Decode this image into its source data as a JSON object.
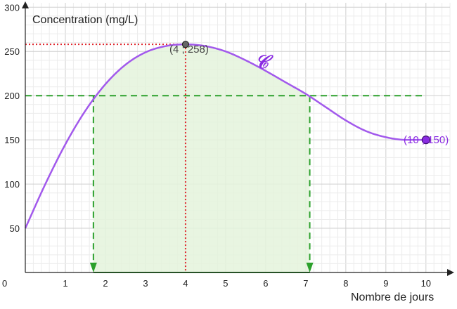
{
  "chart_data": {
    "type": "line",
    "title": "",
    "ylabel": "Concentration (mg/L)",
    "xlabel": "Nombre de jours",
    "xlim": [
      0,
      10.6
    ],
    "ylim": [
      0,
      305
    ],
    "grid": true,
    "x_ticks": [
      0,
      1,
      2,
      3,
      4,
      5,
      6,
      7,
      8,
      9,
      10
    ],
    "y_ticks": [
      50,
      100,
      150,
      200,
      250,
      300
    ],
    "series": [
      {
        "name": "𝒞",
        "color": "#a259ec",
        "x": [
          0,
          0.5,
          1,
          1.5,
          2,
          2.5,
          3,
          3.5,
          4,
          4.5,
          5,
          5.5,
          6,
          6.5,
          7,
          7.5,
          8,
          8.5,
          9,
          9.5,
          10
        ],
        "y": [
          50,
          100,
          145,
          183,
          213,
          235,
          249,
          256,
          258,
          256,
          250,
          240,
          228,
          215,
          202,
          187,
          172,
          160,
          153,
          150,
          150
        ]
      }
    ],
    "points": [
      {
        "x": 4,
        "y": 258,
        "label": "(4 ; 258)",
        "color": "#555555"
      },
      {
        "x": 10,
        "y": 150,
        "label": "(10 ; 150)",
        "color": "#8a2be2"
      }
    ],
    "threshold": {
      "y": 200,
      "x_start": 1.7,
      "x_end": 7.1,
      "color": "#2ca02c"
    },
    "shaded_region": {
      "from_x": 1.7,
      "to_x": 7.1
    },
    "colors": {
      "curve": "#a259ec",
      "guide": "#e0242c",
      "threshold": "#2ca02c",
      "fill": "#e4f3dc",
      "grid": "#d6d6d6"
    }
  }
}
